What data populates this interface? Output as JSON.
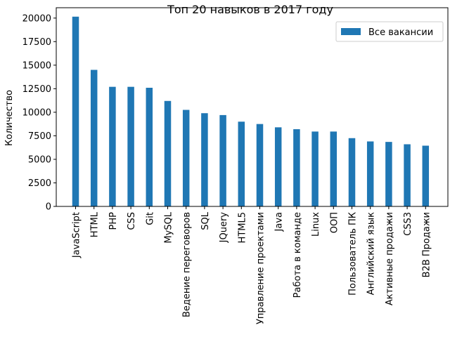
{
  "chart_data": {
    "type": "bar",
    "title": "Топ 20 навыков в 2017 году",
    "xlabel": "",
    "ylabel": "Количество",
    "ylim": [
      0,
      21100
    ],
    "yticks": [
      0,
      2500,
      5000,
      7500,
      10000,
      12500,
      15000,
      17500,
      20000
    ],
    "legend_position": "top-right",
    "grid": false,
    "categories": [
      "JavaScript",
      "HTML",
      "PHP",
      "CSS",
      "Git",
      "MySQL",
      "Ведение переговоров",
      "SQL",
      "JQuery",
      "HTML5",
      "Управление проектами",
      "Java",
      "Работа в команде",
      "Linux",
      "ООП",
      "Пользователь ПК",
      "Английский язык",
      "Активные продажи",
      "CSS3",
      "B2B Продажи"
    ],
    "series": [
      {
        "name": "Все вакансии",
        "color": "#1f77b4",
        "values": [
          20150,
          14500,
          12700,
          12700,
          12600,
          11200,
          10250,
          9900,
          9700,
          9000,
          8750,
          8400,
          8200,
          7950,
          7950,
          7250,
          6900,
          6850,
          6600,
          6450
        ]
      }
    ]
  }
}
